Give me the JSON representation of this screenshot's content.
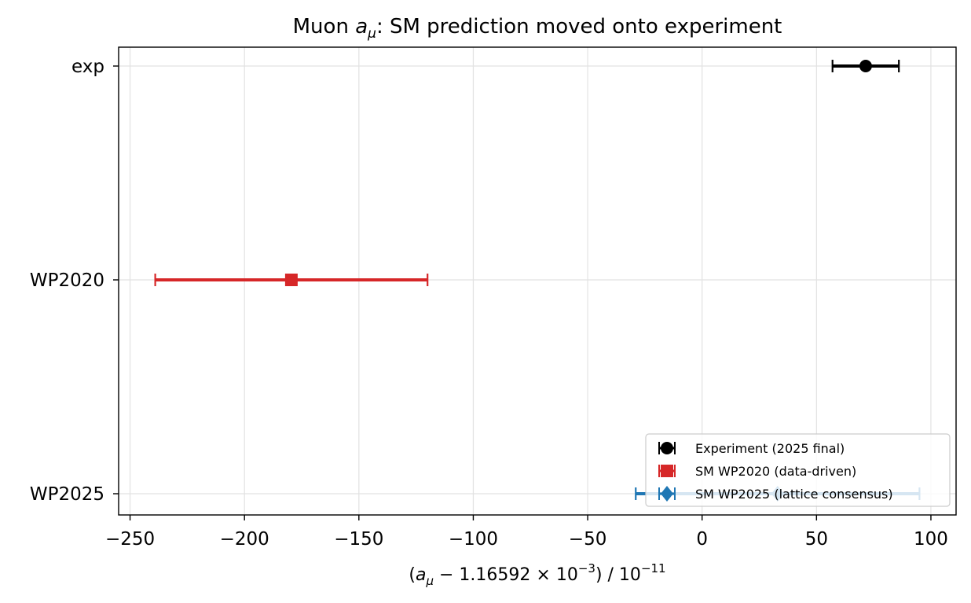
{
  "chart_data": {
    "type": "errorbar",
    "title_text": "Muon ",
    "title_symbol": "a",
    "title_subscript": "μ",
    "title_rest": ": SM prediction moved onto experiment",
    "xlabel_parts": {
      "open": "(",
      "a": "a",
      "mu": "μ",
      "minus": " − 1.16592 × 10",
      "exp1": "−3",
      "close": ") / 10",
      "exp2": "−11"
    },
    "xlim": [
      -255,
      111
    ],
    "xticks": [
      -250,
      -200,
      -150,
      -100,
      -50,
      0,
      50,
      100
    ],
    "xtick_labels": [
      "−250",
      "−200",
      "−150",
      "−100",
      "−50",
      "0",
      "50",
      "100"
    ],
    "categories": [
      "exp",
      "WP2020",
      "WP2025"
    ],
    "grid": true,
    "legend_position": "lower right",
    "series": [
      {
        "name": "Experiment (2025 final)",
        "category": "exp",
        "value": 71.5,
        "xerr": 14.5,
        "color": "#000000",
        "marker": "circle"
      },
      {
        "name": "SM WP2020 (data-driven)",
        "category": "WP2020",
        "value": -179.5,
        "xerr": 59.5,
        "color": "#d62728",
        "marker": "square"
      },
      {
        "name": "SM WP2025 (lattice consensus)",
        "category": "WP2025",
        "value": 33,
        "xerr": 62,
        "color": "#1f77b4",
        "marker": "diamond"
      }
    ]
  }
}
